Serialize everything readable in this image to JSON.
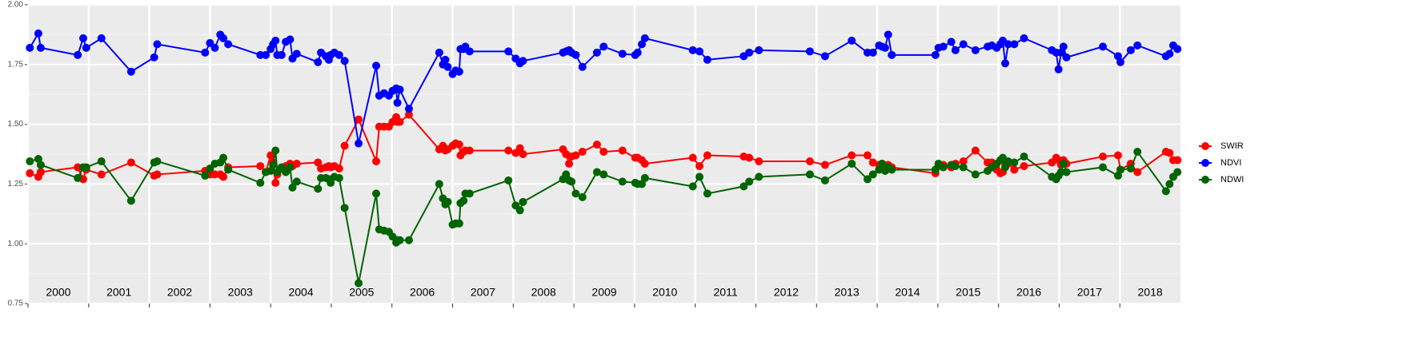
{
  "chart_data": {
    "type": "line",
    "x": [
      2000.03,
      2000.17,
      2000.21,
      2000.82,
      2000.91,
      2000.96,
      2001.21,
      2001.7,
      2002.08,
      2002.13,
      2002.92,
      2003.0,
      2003.08,
      2003.17,
      2003.22,
      2003.3,
      2003.83,
      2003.92,
      2004.0,
      2004.04,
      2004.08,
      2004.11,
      2004.18,
      2004.25,
      2004.32,
      2004.36,
      2004.43,
      2004.78,
      2004.83,
      2004.91,
      2004.96,
      2004.99,
      2005.05,
      2005.13,
      2005.22,
      2005.45,
      2005.74,
      2005.79,
      2005.87,
      2005.95,
      2006.01,
      2006.07,
      2006.09,
      2006.13,
      2006.28,
      2006.78,
      2006.84,
      2006.88,
      2006.92,
      2007.0,
      2007.05,
      2007.11,
      2007.13,
      2007.18,
      2007.21,
      2007.28,
      2007.92,
      2008.04,
      2008.11,
      2008.16,
      2008.82,
      2008.87,
      2008.92,
      2008.96,
      2009.03,
      2009.14,
      2009.38,
      2009.49,
      2009.8,
      2010.01,
      2010.05,
      2010.12,
      2010.17,
      2010.96,
      2011.07,
      2011.2,
      2011.8,
      2011.89,
      2012.05,
      2012.89,
      2013.14,
      2013.58,
      2013.84,
      2013.93,
      2014.03,
      2014.08,
      2014.13,
      2014.18,
      2014.24,
      2014.96,
      2015.01,
      2015.09,
      2015.22,
      2015.29,
      2015.42,
      2015.62,
      2015.82,
      2015.89,
      2015.97,
      2016.03,
      2016.07,
      2016.11,
      2016.16,
      2016.26,
      2016.42,
      2016.88,
      2016.95,
      2016.99,
      2017.03,
      2017.07,
      2017.12,
      2017.72,
      2017.97,
      2018.01,
      2018.18,
      2018.29,
      2018.76,
      2018.82,
      2018.88,
      2018.95
    ],
    "series": [
      {
        "name": "SWIR",
        "color": "#ff0000",
        "values": [
          1.295,
          1.28,
          1.3,
          1.32,
          1.27,
          1.31,
          1.29,
          1.34,
          1.285,
          1.29,
          1.305,
          1.29,
          1.29,
          1.29,
          1.28,
          1.32,
          1.325,
          1.3,
          1.37,
          1.34,
          1.255,
          1.29,
          1.315,
          1.325,
          1.335,
          1.325,
          1.335,
          1.34,
          1.315,
          1.32,
          1.325,
          1.32,
          1.325,
          1.315,
          1.41,
          1.52,
          1.345,
          1.49,
          1.49,
          1.49,
          1.51,
          1.53,
          1.51,
          1.51,
          1.54,
          1.395,
          1.41,
          1.39,
          1.395,
          1.41,
          1.42,
          1.415,
          1.37,
          1.385,
          1.39,
          1.39,
          1.39,
          1.38,
          1.4,
          1.375,
          1.395,
          1.375,
          1.335,
          1.365,
          1.37,
          1.385,
          1.415,
          1.385,
          1.39,
          1.36,
          1.36,
          1.35,
          1.335,
          1.36,
          1.325,
          1.37,
          1.365,
          1.36,
          1.345,
          1.345,
          1.33,
          1.37,
          1.37,
          1.34,
          1.33,
          1.335,
          1.32,
          1.33,
          1.32,
          1.295,
          1.325,
          1.33,
          1.32,
          1.335,
          1.345,
          1.39,
          1.34,
          1.34,
          1.31,
          1.295,
          1.3,
          1.335,
          1.335,
          1.31,
          1.325,
          1.34,
          1.36,
          1.35,
          1.33,
          1.35,
          1.335,
          1.365,
          1.37,
          1.31,
          1.335,
          1.3,
          1.385,
          1.38,
          1.35,
          1.35
        ]
      },
      {
        "name": "NDVI",
        "color": "#0000ff",
        "values": [
          1.82,
          1.88,
          1.82,
          1.79,
          1.86,
          1.82,
          1.86,
          1.72,
          1.78,
          1.835,
          1.8,
          1.84,
          1.82,
          1.875,
          1.86,
          1.835,
          1.79,
          1.79,
          1.815,
          1.835,
          1.85,
          1.79,
          1.79,
          1.845,
          1.855,
          1.775,
          1.795,
          1.76,
          1.8,
          1.785,
          1.77,
          1.79,
          1.8,
          1.79,
          1.765,
          1.42,
          1.745,
          1.62,
          1.63,
          1.62,
          1.64,
          1.65,
          1.59,
          1.645,
          1.565,
          1.8,
          1.75,
          1.77,
          1.74,
          1.71,
          1.725,
          1.72,
          1.815,
          1.815,
          1.825,
          1.805,
          1.805,
          1.775,
          1.755,
          1.765,
          1.8,
          1.805,
          1.81,
          1.8,
          1.79,
          1.74,
          1.8,
          1.825,
          1.795,
          1.79,
          1.8,
          1.835,
          1.86,
          1.81,
          1.805,
          1.77,
          1.785,
          1.8,
          1.81,
          1.805,
          1.785,
          1.85,
          1.8,
          1.8,
          1.83,
          1.825,
          1.82,
          1.875,
          1.79,
          1.79,
          1.82,
          1.825,
          1.845,
          1.81,
          1.835,
          1.81,
          1.825,
          1.83,
          1.82,
          1.835,
          1.85,
          1.755,
          1.835,
          1.835,
          1.86,
          1.81,
          1.8,
          1.73,
          1.8,
          1.825,
          1.78,
          1.825,
          1.785,
          1.76,
          1.81,
          1.83,
          1.785,
          1.795,
          1.83,
          1.815
        ]
      },
      {
        "name": "NDWI",
        "color": "#006400",
        "values": [
          1.345,
          1.355,
          1.33,
          1.275,
          1.32,
          1.32,
          1.345,
          1.18,
          1.34,
          1.345,
          1.285,
          1.315,
          1.335,
          1.34,
          1.36,
          1.31,
          1.255,
          1.3,
          1.305,
          1.33,
          1.39,
          1.3,
          1.32,
          1.3,
          1.32,
          1.235,
          1.26,
          1.23,
          1.275,
          1.275,
          1.27,
          1.255,
          1.28,
          1.275,
          1.15,
          0.835,
          1.21,
          1.06,
          1.055,
          1.05,
          1.03,
          1.005,
          1.015,
          1.015,
          1.015,
          1.25,
          1.19,
          1.165,
          1.175,
          1.08,
          1.085,
          1.085,
          1.17,
          1.18,
          1.21,
          1.21,
          1.265,
          1.16,
          1.14,
          1.175,
          1.27,
          1.29,
          1.265,
          1.26,
          1.21,
          1.195,
          1.3,
          1.29,
          1.26,
          1.255,
          1.25,
          1.25,
          1.275,
          1.24,
          1.28,
          1.21,
          1.24,
          1.26,
          1.28,
          1.29,
          1.265,
          1.335,
          1.27,
          1.29,
          1.31,
          1.335,
          1.305,
          1.32,
          1.31,
          1.31,
          1.335,
          1.32,
          1.33,
          1.325,
          1.32,
          1.29,
          1.305,
          1.32,
          1.335,
          1.35,
          1.36,
          1.32,
          1.345,
          1.34,
          1.365,
          1.28,
          1.27,
          1.285,
          1.3,
          1.335,
          1.3,
          1.32,
          1.285,
          1.31,
          1.315,
          1.385,
          1.22,
          1.25,
          1.28,
          1.3
        ]
      }
    ],
    "xlim": [
      2000,
      2019
    ],
    "xticks": [
      2000,
      2001,
      2002,
      2003,
      2004,
      2005,
      2006,
      2007,
      2008,
      2009,
      2010,
      2011,
      2012,
      2013,
      2014,
      2015,
      2016,
      2017,
      2018
    ],
    "year_labels": [
      "2000",
      "2001",
      "2002",
      "2003",
      "2004",
      "2005",
      "2006",
      "2007",
      "2008",
      "2009",
      "2010",
      "2011",
      "2012",
      "2013",
      "2014",
      "2015",
      "2016",
      "2017",
      "2018"
    ],
    "ylim": [
      0.75,
      2.0
    ],
    "yticks": [
      {
        "value": 0.75,
        "label": "0.75"
      },
      {
        "value": 1.0,
        "label": "1.00"
      },
      {
        "value": 1.25,
        "label": "1.25"
      },
      {
        "value": 1.5,
        "label": "1.50"
      },
      {
        "value": 1.75,
        "label": "1.75"
      },
      {
        "value": 2.0,
        "label": "2.00"
      }
    ],
    "grid": true,
    "legend": "right"
  }
}
